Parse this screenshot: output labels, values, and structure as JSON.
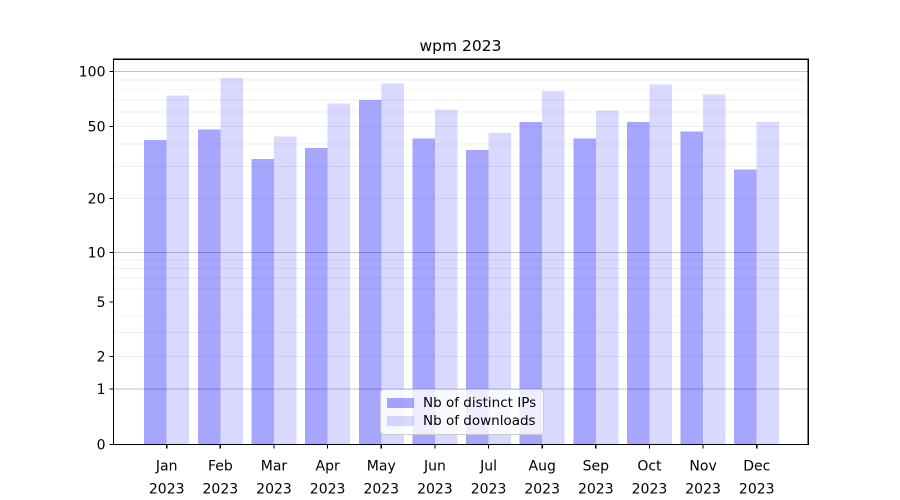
{
  "chart_data": {
    "type": "bar",
    "title": "wpm 2023",
    "categories": [
      "Jan\n2023",
      "Feb\n2023",
      "Mar\n2023",
      "Apr\n2023",
      "May\n2023",
      "Jun\n2023",
      "Jul\n2023",
      "Aug\n2023",
      "Sep\n2023",
      "Oct\n2023",
      "Nov\n2023",
      "Dec\n2023"
    ],
    "series": [
      {
        "name": "Nb of distinct IPs",
        "color": "rgba(0,0,255,0.35)",
        "values": [
          42,
          48,
          33,
          38,
          70,
          43,
          37,
          53,
          43,
          53,
          47,
          29
        ]
      },
      {
        "name": "Nb of downloads",
        "color": "rgba(0,0,255,0.15)",
        "values": [
          74,
          92,
          44,
          67,
          86,
          62,
          46,
          78,
          61,
          85,
          75,
          53
        ]
      }
    ],
    "xlabel": "",
    "ylabel": "",
    "yscale": "symlog",
    "ylim": [
      0,
      117
    ],
    "y_tick_labels": [
      0,
      1,
      2,
      5,
      10,
      20,
      50,
      100
    ],
    "y_major_gridlines": [
      1,
      10,
      100
    ],
    "y_minor_gridlines": [
      2,
      3,
      4,
      6,
      7,
      8,
      9,
      20,
      30,
      40,
      50,
      60,
      70,
      80,
      90
    ],
    "grid": true,
    "legend_position": "lower center",
    "colors": {
      "spine": "#000000",
      "major_grid": "#c3c3c3",
      "minor_grid": "#efefef",
      "tick_text": "#000000"
    }
  }
}
